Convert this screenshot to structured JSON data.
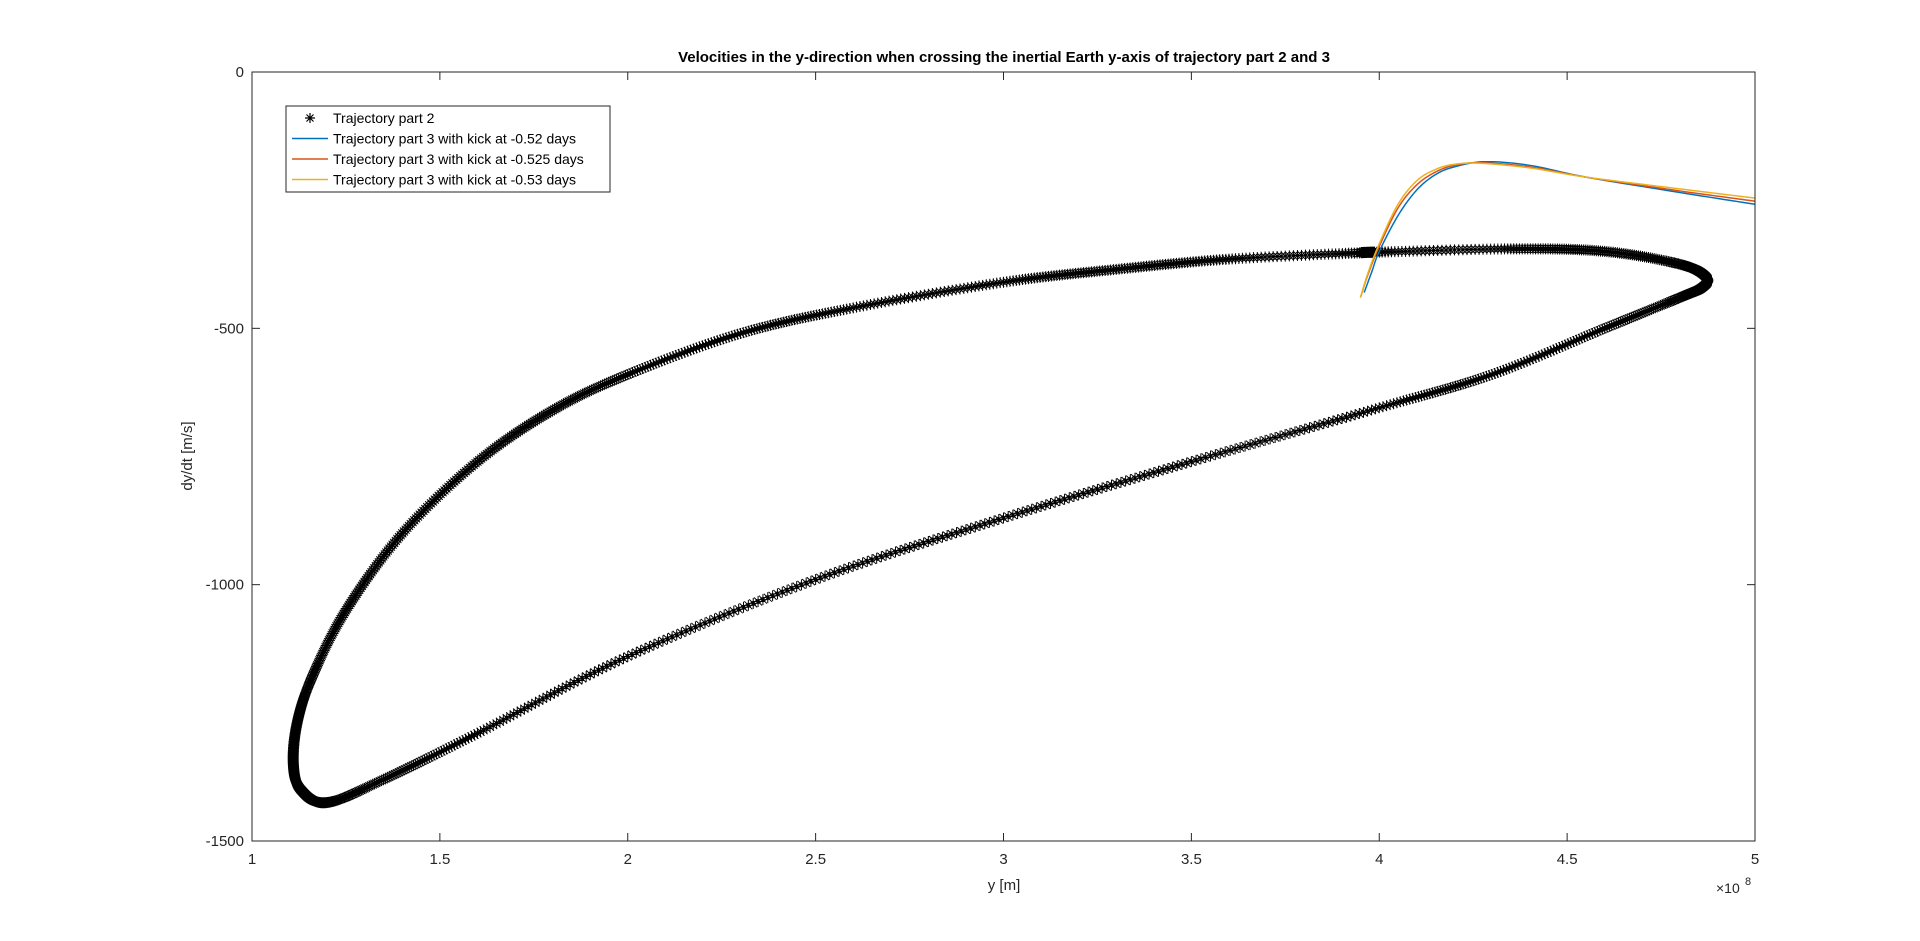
{
  "chart_data": {
    "type": "line",
    "title": "Velocities in the y-direction when crossing the inertial Earth y-axis of trajectory part 2 and 3",
    "xlabel": "y [m]",
    "ylabel": "dy/dt [m/s]",
    "x_exponent_label": "×10",
    "x_exponent_power": "8",
    "xlim": [
      1,
      5
    ],
    "ylim": [
      -1500,
      0
    ],
    "x_scale": 100000000,
    "xticks": [
      1,
      1.5,
      2,
      2.5,
      3,
      3.5,
      4,
      4.5,
      5
    ],
    "xtick_labels": [
      "1",
      "1.5",
      "2",
      "2.5",
      "3",
      "3.5",
      "4",
      "4.5",
      "5"
    ],
    "yticks": [
      0,
      -500,
      -1000,
      -1500
    ],
    "ytick_labels": [
      "0",
      "-500",
      "-1000",
      "-1500"
    ],
    "grid": false,
    "legend_position": "top-left",
    "series": [
      {
        "name": "Trajectory part 2",
        "marker": "asterisk",
        "color": "#000000",
        "x": [
          3.97,
          4.35,
          4.6,
          4.8,
          4.87,
          4.86,
          4.8,
          4.6,
          4.3,
          4.0,
          3.5,
          3.0,
          2.5,
          2.0,
          1.6,
          1.35,
          1.2,
          1.13,
          1.11,
          1.12,
          1.16,
          1.25,
          1.4,
          1.6,
          1.8,
          2.0,
          2.3,
          2.6,
          3.0,
          3.3,
          3.6,
          3.97
        ],
        "y": [
          -352,
          -345,
          -350,
          -375,
          -400,
          -420,
          -440,
          -500,
          -590,
          -655,
          -760,
          -870,
          -990,
          -1140,
          -1290,
          -1380,
          -1425,
          -1400,
          -1350,
          -1270,
          -1180,
          -1050,
          -900,
          -760,
          -660,
          -590,
          -510,
          -460,
          -410,
          -385,
          -365,
          -352
        ]
      },
      {
        "name": "Trajectory part 3 with kick at -0.52 days",
        "color": "#0072BD",
        "x": [
          3.96,
          3.98,
          4.0,
          4.05,
          4.1,
          4.15,
          4.2,
          4.28,
          4.4,
          4.55,
          4.8,
          5.0
        ],
        "y": [
          -430,
          -390,
          -350,
          -280,
          -230,
          -200,
          -185,
          -175,
          -182,
          -205,
          -235,
          -258
        ]
      },
      {
        "name": "Trajectory part 3 with kick at -0.525 days",
        "color": "#D95319",
        "x": [
          3.95,
          3.97,
          4.0,
          4.05,
          4.1,
          4.15,
          4.2,
          4.27,
          4.4,
          4.55,
          4.8,
          5.0
        ],
        "y": [
          -440,
          -395,
          -340,
          -265,
          -220,
          -195,
          -182,
          -177,
          -185,
          -205,
          -232,
          -252
        ]
      },
      {
        "name": "Trajectory part 3 with kick at -0.53 days",
        "color": "#EDB120",
        "x": [
          3.95,
          3.97,
          4.0,
          4.05,
          4.1,
          4.15,
          4.2,
          4.27,
          4.4,
          4.55,
          4.8,
          5.0
        ],
        "y": [
          -440,
          -392,
          -335,
          -258,
          -212,
          -190,
          -180,
          -178,
          -187,
          -205,
          -228,
          -246
        ]
      }
    ]
  }
}
